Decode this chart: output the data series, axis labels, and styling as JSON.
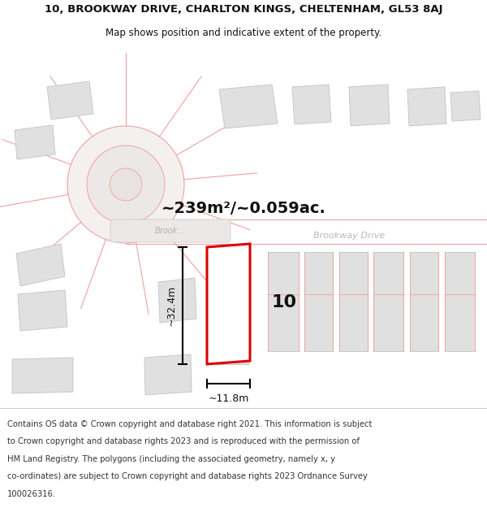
{
  "title_line1": "10, BROOKWAY DRIVE, CHARLTON KINGS, CHELTENHAM, GL53 8AJ",
  "title_line2": "Map shows position and indicative extent of the property.",
  "footer_text": "Contains OS data © Crown copyright and database right 2021. This information is subject to Crown copyright and database rights 2023 and is reproduced with the permission of HM Land Registry. The polygons (including the associated geometry, namely x, y co-ordinates) are subject to Crown copyright and database rights 2023 Ordnance Survey 100026316.",
  "area_label": "~239m²/~0.059ac.",
  "number_label": "10",
  "dim_width_label": "~11.8m",
  "dim_height_label": "~32.4m",
  "road_label_left": "Brook",
  "road_label_right": "Brookway Drive",
  "bg_color": "#ffffff",
  "map_bg": "#f5f0f0",
  "building_fill": "#e0e0e0",
  "building_edge": "#c8c8c8",
  "red_line_color": "#dd0000",
  "pink_line": "#f0a0a0",
  "black_text": "#111111",
  "gray_road_text": "#bbbbbb",
  "title_fontsize": 9.5,
  "footer_fontsize": 7.2,
  "area_fontsize": 15,
  "number_fontsize": 18
}
